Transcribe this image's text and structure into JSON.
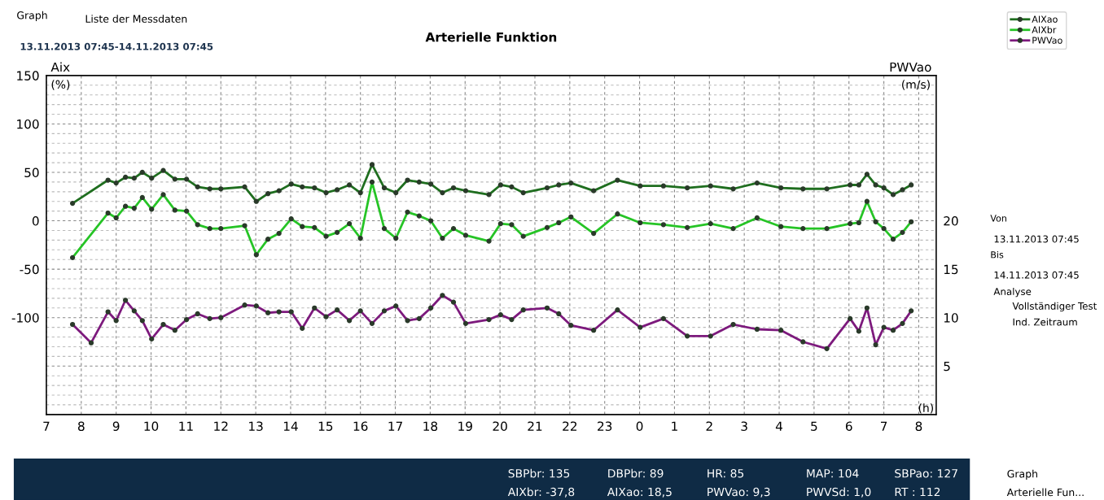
{
  "chart_data": {
    "type": "line",
    "title": "Arterielle Funktion",
    "subtitle": "13.11.2013 07:45-14.11.2013 07:45",
    "ylabel": "Aix",
    "y2label": "PWVao",
    "xlim": [
      "2013-11-13T07:00",
      "2013-11-14T08:30"
    ],
    "xticks": [
      {
        "value": "2013-11-13T07:00",
        "label": "7"
      },
      {
        "value": "2013-11-13T08:00",
        "label": "8"
      },
      {
        "value": "2013-11-13T09:00",
        "label": "9"
      },
      {
        "value": "2013-11-13T10:00",
        "label": "10"
      },
      {
        "value": "2013-11-13T11:00",
        "label": "11"
      },
      {
        "value": "2013-11-13T12:00",
        "label": "12"
      },
      {
        "value": "2013-11-13T13:00",
        "label": "13"
      },
      {
        "value": "2013-11-13T14:00",
        "label": "14"
      },
      {
        "value": "2013-11-13T15:00",
        "label": "15"
      },
      {
        "value": "2013-11-13T16:00",
        "label": "16"
      },
      {
        "value": "2013-11-13T17:00",
        "label": "17"
      },
      {
        "value": "2013-11-13T18:00",
        "label": "18"
      },
      {
        "value": "2013-11-13T19:00",
        "label": "19"
      },
      {
        "value": "2013-11-13T20:00",
        "label": "20"
      },
      {
        "value": "2013-11-13T21:00",
        "label": "21"
      },
      {
        "value": "2013-11-13T22:00",
        "label": "22"
      },
      {
        "value": "2013-11-13T23:00",
        "label": "23"
      },
      {
        "value": "2013-11-14T00:00",
        "label": "0"
      },
      {
        "value": "2013-11-14T01:00",
        "label": "1"
      },
      {
        "value": "2013-11-14T02:00",
        "label": "2"
      },
      {
        "value": "2013-11-14T03:00",
        "label": "3"
      },
      {
        "value": "2013-11-14T04:00",
        "label": "4"
      },
      {
        "value": "2013-11-14T05:00",
        "label": "5"
      },
      {
        "value": "2013-11-14T06:00",
        "label": "6"
      },
      {
        "value": "2013-11-14T07:00",
        "label": "7"
      },
      {
        "value": "2013-11-14T08:00",
        "label": "8"
      }
    ],
    "ylim": [
      -200,
      150
    ],
    "yticks": [
      {
        "value": -200,
        "label": null
      },
      {
        "value": -150,
        "label": null
      },
      -100,
      -50,
      0,
      50,
      100,
      150
    ],
    "y2lim": [
      0,
      35
    ],
    "y2ticks": [
      5,
      10,
      15,
      20
    ],
    "grid": true,
    "legend": "top right",
    "marker": "circle",
    "line_style": "solid",
    "series": [
      {
        "name": "AIXao",
        "color": "#1f6e1f",
        "x": [
          "2013-11-13T07:45",
          "2013-11-13T08:46",
          "2013-11-13T09:00",
          "2013-11-13T09:16",
          "2013-11-13T09:31",
          "2013-11-13T09:45",
          "2013-11-13T10:01",
          "2013-11-13T10:21",
          "2013-11-13T10:41",
          "2013-11-13T11:01",
          "2013-11-13T11:20",
          "2013-11-13T11:41",
          "2013-11-13T12:00",
          "2013-11-13T12:41",
          "2013-11-13T13:01",
          "2013-11-13T13:21",
          "2013-11-13T13:40",
          "2013-11-13T14:01",
          "2013-11-13T14:20",
          "2013-11-13T14:41",
          "2013-11-13T15:01",
          "2013-11-13T15:20",
          "2013-11-13T15:41",
          "2013-11-13T16:00",
          "2013-11-13T16:20",
          "2013-11-13T16:41",
          "2013-11-13T17:01",
          "2013-11-13T17:21",
          "2013-11-13T17:41",
          "2013-11-13T18:01",
          "2013-11-13T18:21",
          "2013-11-13T18:40",
          "2013-11-13T19:01",
          "2013-11-13T19:41",
          "2013-11-13T20:01",
          "2013-11-13T20:20",
          "2013-11-13T20:40",
          "2013-11-13T21:21",
          "2013-11-13T21:41",
          "2013-11-13T22:02",
          "2013-11-13T22:41",
          "2013-11-13T23:22",
          "2013-11-14T00:01",
          "2013-11-14T00:41",
          "2013-11-14T01:22",
          "2013-11-14T02:02",
          "2013-11-14T02:41",
          "2013-11-14T03:22",
          "2013-11-14T04:03",
          "2013-11-14T04:41",
          "2013-11-14T05:22",
          "2013-11-14T06:02",
          "2013-11-14T06:17",
          "2013-11-14T06:31",
          "2013-11-14T06:46",
          "2013-11-14T07:00",
          "2013-11-14T07:16",
          "2013-11-14T07:32",
          "2013-11-14T07:47"
        ],
        "values": [
          18,
          42,
          39,
          45,
          44,
          50,
          44,
          52,
          43,
          43,
          35,
          33,
          33,
          35,
          20,
          28,
          31,
          38,
          35,
          34,
          29,
          32,
          37,
          29,
          58,
          34,
          29,
          42,
          40,
          38,
          29,
          34,
          31,
          27,
          37,
          35,
          29,
          34,
          37,
          39,
          31,
          42,
          36,
          36,
          34,
          36,
          33,
          39,
          34,
          33,
          33,
          37,
          37,
          48,
          37,
          34,
          27,
          32,
          37
        ]
      },
      {
        "name": "AIXbr",
        "color": "#26c426",
        "x": [
          "2013-11-13T07:45",
          "2013-11-13T08:46",
          "2013-11-13T09:00",
          "2013-11-13T09:16",
          "2013-11-13T09:31",
          "2013-11-13T09:45",
          "2013-11-13T10:01",
          "2013-11-13T10:21",
          "2013-11-13T10:41",
          "2013-11-13T11:01",
          "2013-11-13T11:20",
          "2013-11-13T11:41",
          "2013-11-13T12:00",
          "2013-11-13T12:41",
          "2013-11-13T13:01",
          "2013-11-13T13:21",
          "2013-11-13T13:40",
          "2013-11-13T14:01",
          "2013-11-13T14:20",
          "2013-11-13T14:41",
          "2013-11-13T15:01",
          "2013-11-13T15:20",
          "2013-11-13T15:41",
          "2013-11-13T16:00",
          "2013-11-13T16:20",
          "2013-11-13T16:41",
          "2013-11-13T17:01",
          "2013-11-13T17:21",
          "2013-11-13T17:41",
          "2013-11-13T18:01",
          "2013-11-13T18:21",
          "2013-11-13T18:40",
          "2013-11-13T19:01",
          "2013-11-13T19:41",
          "2013-11-13T20:01",
          "2013-11-13T20:20",
          "2013-11-13T20:40",
          "2013-11-13T21:21",
          "2013-11-13T21:41",
          "2013-11-13T22:02",
          "2013-11-13T22:41",
          "2013-11-13T23:22",
          "2013-11-14T00:01",
          "2013-11-14T00:41",
          "2013-11-14T01:22",
          "2013-11-14T02:02",
          "2013-11-14T02:41",
          "2013-11-14T03:22",
          "2013-11-14T04:03",
          "2013-11-14T04:41",
          "2013-11-14T05:22",
          "2013-11-14T06:02",
          "2013-11-14T06:17",
          "2013-11-14T06:31",
          "2013-11-14T06:46",
          "2013-11-14T07:00",
          "2013-11-14T07:16",
          "2013-11-14T07:32",
          "2013-11-14T07:47"
        ],
        "values": [
          -38,
          8,
          3,
          15,
          13,
          24,
          12,
          27,
          11,
          10,
          -4,
          -8,
          -8,
          -5,
          -35,
          -19,
          -13,
          2,
          -6,
          -7,
          -16,
          -12,
          -3,
          -18,
          40,
          -8,
          -18,
          9,
          5,
          0,
          -18,
          -8,
          -15,
          -21,
          -3,
          -4,
          -16,
          -7,
          -2,
          4,
          -13,
          7,
          -2,
          -4,
          -7,
          -3,
          -8,
          3,
          -6,
          -8,
          -8,
          -3,
          -2,
          20,
          -1,
          -8,
          -19,
          -12,
          -1
        ]
      },
      {
        "name": "PWVao",
        "color": "#7d1a7d",
        "axis": "y2",
        "x": [
          "2013-11-13T07:45",
          "2013-11-13T08:17",
          "2013-11-13T08:46",
          "2013-11-13T09:00",
          "2013-11-13T09:16",
          "2013-11-13T09:31",
          "2013-11-13T09:45",
          "2013-11-13T10:01",
          "2013-11-13T10:21",
          "2013-11-13T10:41",
          "2013-11-13T11:01",
          "2013-11-13T11:20",
          "2013-11-13T11:41",
          "2013-11-13T12:00",
          "2013-11-13T12:41",
          "2013-11-13T13:01",
          "2013-11-13T13:21",
          "2013-11-13T13:40",
          "2013-11-13T14:01",
          "2013-11-13T14:20",
          "2013-11-13T14:41",
          "2013-11-13T15:01",
          "2013-11-13T15:20",
          "2013-11-13T15:41",
          "2013-11-13T16:00",
          "2013-11-13T16:20",
          "2013-11-13T16:41",
          "2013-11-13T17:01",
          "2013-11-13T17:21",
          "2013-11-13T17:41",
          "2013-11-13T18:01",
          "2013-11-13T18:21",
          "2013-11-13T18:40",
          "2013-11-13T19:01",
          "2013-11-13T19:41",
          "2013-11-13T20:01",
          "2013-11-13T20:20",
          "2013-11-13T20:40",
          "2013-11-13T21:21",
          "2013-11-13T21:41",
          "2013-11-13T22:02",
          "2013-11-13T22:41",
          "2013-11-13T23:22",
          "2013-11-14T00:01",
          "2013-11-14T00:41",
          "2013-11-14T01:22",
          "2013-11-14T02:02",
          "2013-11-14T02:41",
          "2013-11-14T03:22",
          "2013-11-14T04:03",
          "2013-11-14T04:41",
          "2013-11-14T05:22",
          "2013-11-14T06:02",
          "2013-11-14T06:17",
          "2013-11-14T06:31",
          "2013-11-14T06:46",
          "2013-11-14T07:00",
          "2013-11-14T07:16",
          "2013-11-14T07:32",
          "2013-11-14T07:47"
        ],
        "values": [
          9.3,
          7.4,
          10.6,
          9.7,
          11.8,
          10.7,
          9.7,
          7.8,
          9.3,
          8.7,
          9.8,
          10.4,
          9.9,
          10.0,
          11.3,
          11.2,
          10.5,
          10.6,
          10.6,
          8.9,
          11.0,
          10.1,
          10.8,
          9.7,
          10.7,
          9.4,
          10.7,
          11.2,
          9.7,
          9.9,
          11.0,
          12.3,
          11.6,
          9.4,
          9.8,
          10.3,
          9.8,
          10.8,
          11.0,
          10.4,
          9.2,
          8.7,
          10.8,
          9.0,
          9.9,
          8.1,
          8.1,
          9.3,
          8.8,
          8.7,
          7.5,
          6.8,
          9.9,
          8.6,
          11.0,
          7.2,
          9.0,
          8.7,
          9.4,
          10.7
        ]
      }
    ],
    "annotations": [
      "(%)",
      "(m/s)",
      "(h)",
      "Graph",
      "Liste der Messdaten",
      "Von",
      "13.11.2013 07:45",
      "Bis",
      "14.11.2013 07:45",
      "Analyse",
      "Vollständiger Test",
      "Ind. Zeitraum",
      "SBPbr: 135",
      "DBPbr: 89",
      "HR: 85",
      "MAP: 104",
      "SBPao: 127",
      "AIXbr: -37,8",
      "AIXao: 18,5",
      "PWVao: 9,3",
      "PWVSd: 1,0",
      "RT : 112",
      "Graph",
      "Arterielle Fun..."
    ]
  }
}
